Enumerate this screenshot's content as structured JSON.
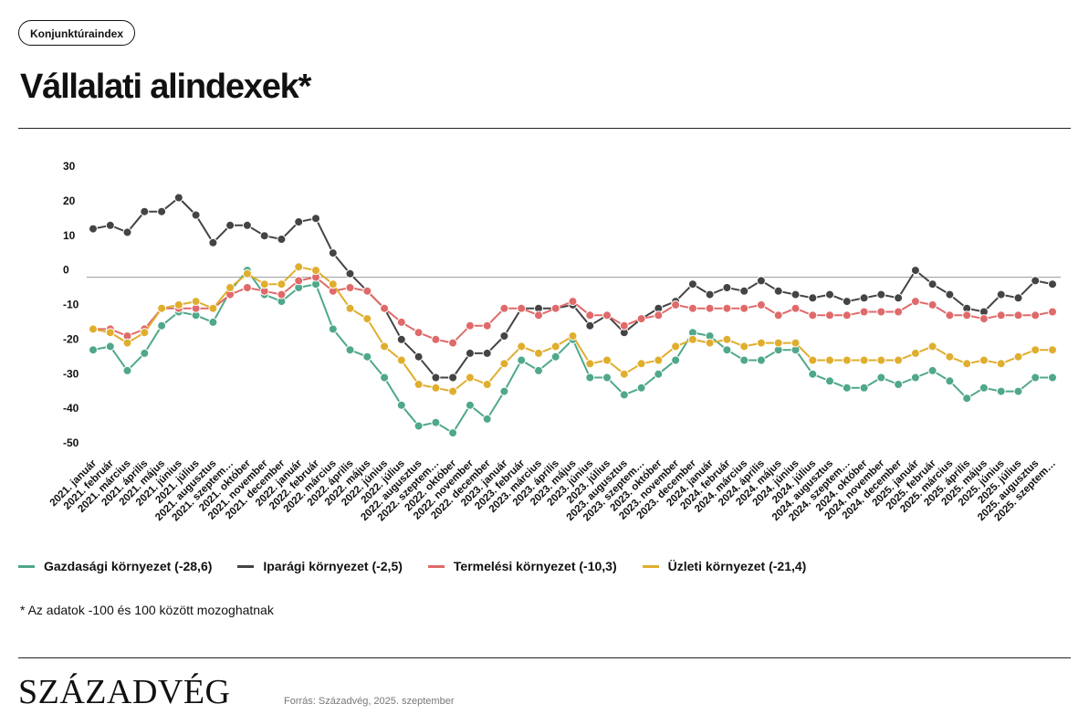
{
  "header": {
    "tag": "Konjunktúraindex",
    "title": "Vállalati alindexek*"
  },
  "footnote": "* Az adatok -100 és 100 között mozoghatnak",
  "footer": {
    "logo": "SZÁZADVÉG",
    "source": "Forrás: Századvég, 2025. szeptember"
  },
  "chart_data": {
    "type": "line",
    "ylim": [
      -50,
      30
    ],
    "yticks": [
      30,
      20,
      10,
      0,
      -10,
      -20,
      -30,
      -40,
      -50
    ],
    "grid": false,
    "legend_position": "bottom-left",
    "categories": [
      "2021. január",
      "2021. február",
      "2021. március",
      "2021. április",
      "2021. május",
      "2021. június",
      "2021. július",
      "2021. augusztus",
      "2021. szeptem…",
      "2021. október",
      "2021. november",
      "2021. december",
      "2022. január",
      "2022. február",
      "2022. március",
      "2022. április",
      "2022. május",
      "2022. június",
      "2022. július",
      "2022. augusztus",
      "2022. szeptem…",
      "2022. október",
      "2022. november",
      "2022. december",
      "2023. január",
      "2023. február",
      "2023. március",
      "2023. április",
      "2023. május",
      "2023. június",
      "2023. július",
      "2023. augusztus",
      "2023. szeptem…",
      "2023. október",
      "2023. november",
      "2023. december",
      "2024. január",
      "2024. február",
      "2024. március",
      "2024. április",
      "2024. május",
      "2024. június",
      "2024. július",
      "2024. augusztus",
      "2024. szeptem…",
      "2024. október",
      "2024. november",
      "2024. december",
      "2025. január",
      "2025. február",
      "2025. március",
      "2025. április",
      "2025. május",
      "2025. június",
      "2025. július",
      "2025. augusztus",
      "2025. szeptem…"
    ],
    "series": [
      {
        "name": "Gazdasági környezet (-28,6)",
        "color": "#4fa88a",
        "values": [
          -21,
          -20,
          -27,
          -22,
          -14,
          -10,
          -11,
          -13,
          -4,
          2,
          -5,
          -7,
          -3,
          -2,
          -15,
          -21,
          -23,
          -29,
          -37,
          -43,
          -42,
          -45,
          -37,
          -41,
          -33,
          -24,
          -27,
          -23,
          -18,
          -29,
          -29,
          -34,
          -32,
          -28,
          -24,
          -16,
          -17,
          -21,
          -24,
          -24,
          -21,
          -21,
          -28,
          -30,
          -32,
          -32,
          -29,
          -31,
          -29,
          -27,
          -30,
          -35,
          -32,
          -33,
          -33,
          -29,
          -29
        ]
      },
      {
        "name": "Iparági környezet (-2,5)",
        "color": "#444444",
        "values": [
          14,
          15,
          13,
          19,
          19,
          23,
          18,
          10,
          15,
          15,
          12,
          11,
          16,
          17,
          7,
          1,
          -4,
          -9,
          -18,
          -23,
          -29,
          -29,
          -22,
          -22,
          -17,
          -9,
          -9,
          -9,
          -8,
          -14,
          -11,
          -16,
          -12,
          -9,
          -7,
          -2,
          -5,
          -3,
          -4,
          -1,
          -4,
          -5,
          -6,
          -5,
          -7,
          -6,
          -5,
          -6,
          2,
          -2,
          -5,
          -9,
          -10,
          -5,
          -6,
          -1,
          -2
        ]
      },
      {
        "name": "Termelési környezet (-10,3)",
        "color": "#e06a6a",
        "values": [
          -15,
          -15,
          -17,
          -15,
          -9,
          -9,
          -9,
          -9,
          -5,
          -3,
          -4,
          -5,
          -1,
          0,
          -4,
          -3,
          -4,
          -9,
          -13,
          -16,
          -18,
          -19,
          -14,
          -14,
          -9,
          -9,
          -11,
          -9,
          -7,
          -11,
          -11,
          -14,
          -12,
          -11,
          -8,
          -9,
          -9,
          -9,
          -9,
          -8,
          -11,
          -9,
          -11,
          -11,
          -11,
          -10,
          -10,
          -10,
          -7,
          -8,
          -11,
          -11,
          -12,
          -11,
          -11,
          -11,
          -10
        ]
      },
      {
        "name": "Üzleti környezet (-21,4)",
        "color": "#e0ae2e",
        "values": [
          -15,
          -16,
          -19,
          -16,
          -9,
          -8,
          -7,
          -9,
          -3,
          1,
          -2,
          -2,
          3,
          2,
          -2,
          -9,
          -12,
          -20,
          -24,
          -31,
          -32,
          -33,
          -29,
          -31,
          -25,
          -20,
          -22,
          -20,
          -17,
          -25,
          -24,
          -28,
          -25,
          -24,
          -20,
          -18,
          -19,
          -18,
          -20,
          -19,
          -19,
          -19,
          -24,
          -24,
          -24,
          -24,
          -24,
          -24,
          -22,
          -20,
          -23,
          -25,
          -24,
          -25,
          -23,
          -21,
          -21
        ]
      }
    ]
  }
}
